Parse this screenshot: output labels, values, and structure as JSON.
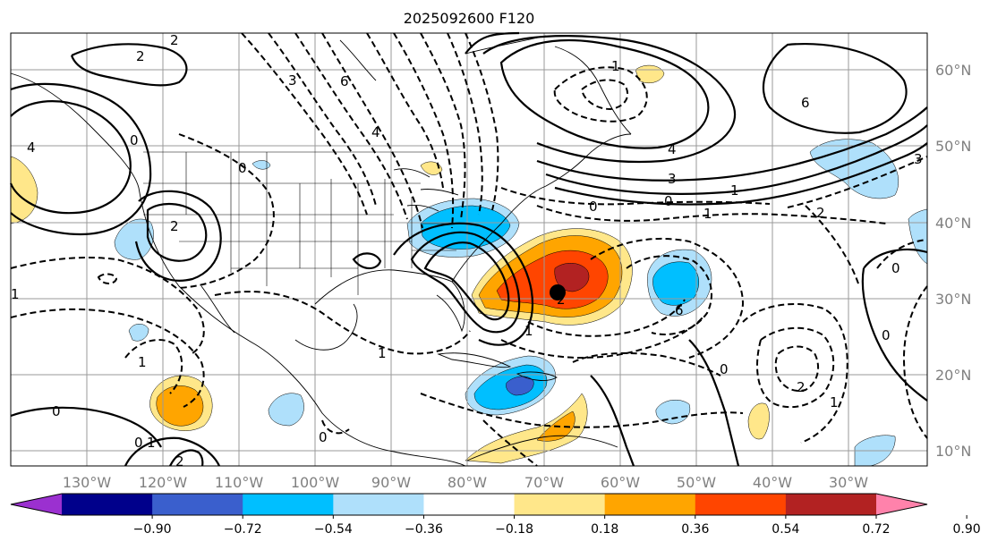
{
  "title": "2025092600 F120",
  "lon_labels": [
    "130°W",
    "120°W",
    "110°W",
    "100°W",
    "90°W",
    "80°W",
    "70°W",
    "60°W",
    "50°W",
    "40°W",
    "30°W"
  ],
  "lat_labels": [
    "60°N",
    "50°N",
    "40°N",
    "30°N",
    "20°N",
    "10°N"
  ],
  "colorbar": {
    "ticks": [
      "−0.90",
      "−0.72",
      "−0.54",
      "−0.36",
      "−0.18",
      "0.18",
      "0.36",
      "0.54",
      "0.72",
      "0.90"
    ],
    "colors": [
      "#9b30d0",
      "#00008b",
      "#3a5fcd",
      "#00bfff",
      "#afe0fb",
      "#ffffff",
      "#ffe78a",
      "#ffa500",
      "#ff4500",
      "#b22222",
      "#ff82ab"
    ]
  },
  "contour_labels": {
    "l2a": "2",
    "l2b": "2",
    "l4a": "4",
    "l0a": "0",
    "l6a": "6",
    "l2c": "2",
    "l3a": "3",
    "l4b": "4",
    "l0b": "0",
    "l2d": "2",
    "l1a": "1",
    "l6b": "6",
    "l4c": "4",
    "l3b": "3",
    "l0c": "0",
    "l1b": "1",
    "l0d": "0",
    "l2e": "2",
    "l1c": "1",
    "l3c": "3",
    "l0e": "0",
    "l1d": "1",
    "l1e": "1",
    "l0f": "0",
    "l1f": "1",
    "l0g": "0",
    "l1g": "1",
    "l1h": "1",
    "l0h": "0",
    "l2f": "2",
    "l0i": "0",
    "l0j": "0",
    "l2g": "2",
    "l1i": "1",
    "l6c": "6"
  }
}
